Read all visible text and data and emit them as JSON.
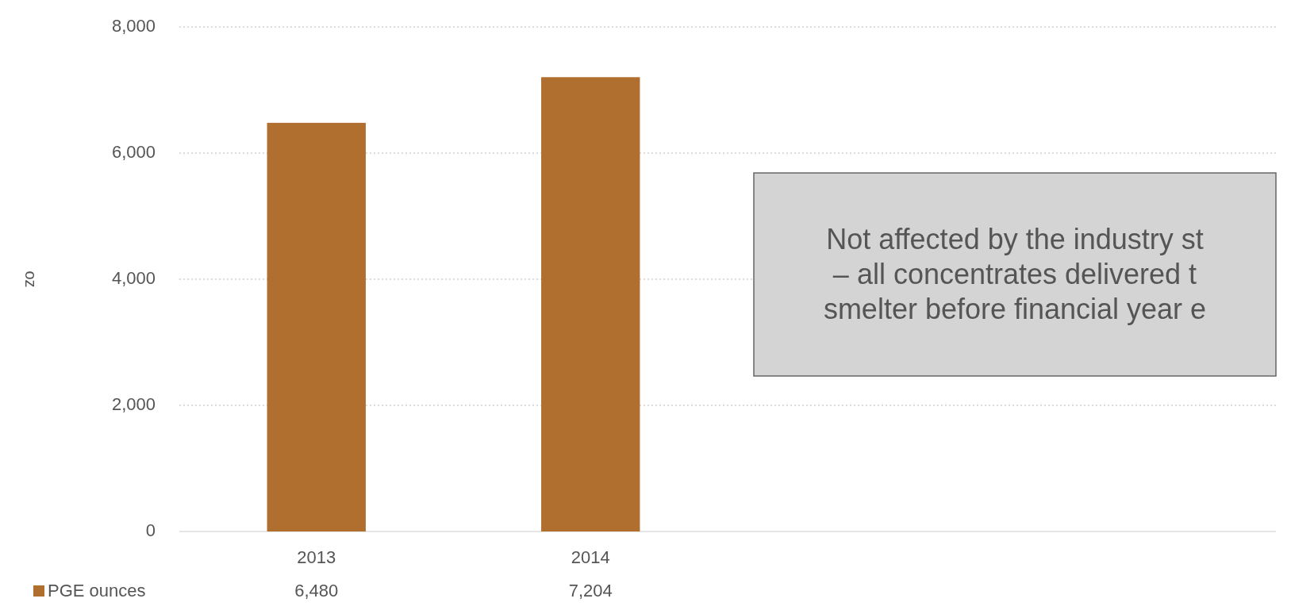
{
  "chart_data": {
    "type": "bar",
    "ylabel": "oz",
    "categories": [
      "2013",
      "2014",
      null,
      null
    ],
    "series": [
      {
        "name": "PGE ounces",
        "color": "#b06f2f",
        "values": [
          6480,
          7204,
          null,
          null
        ],
        "value_labels": [
          "6,480",
          "7,204",
          null,
          null
        ]
      }
    ],
    "ylim": [
      0,
      8000
    ],
    "yticks": [
      {
        "value": 0,
        "label": "0"
      },
      {
        "value": 2000,
        "label": "2,000"
      },
      {
        "value": 4000,
        "label": "4,000"
      },
      {
        "value": 6000,
        "label": "6,000"
      },
      {
        "value": 8000,
        "label": "8,000"
      }
    ],
    "grid": "y",
    "legend": "bottom",
    "annotations": [
      "Not affected by the industry st\n– all concentrates delivered t\nsmelter before financial year e"
    ]
  }
}
